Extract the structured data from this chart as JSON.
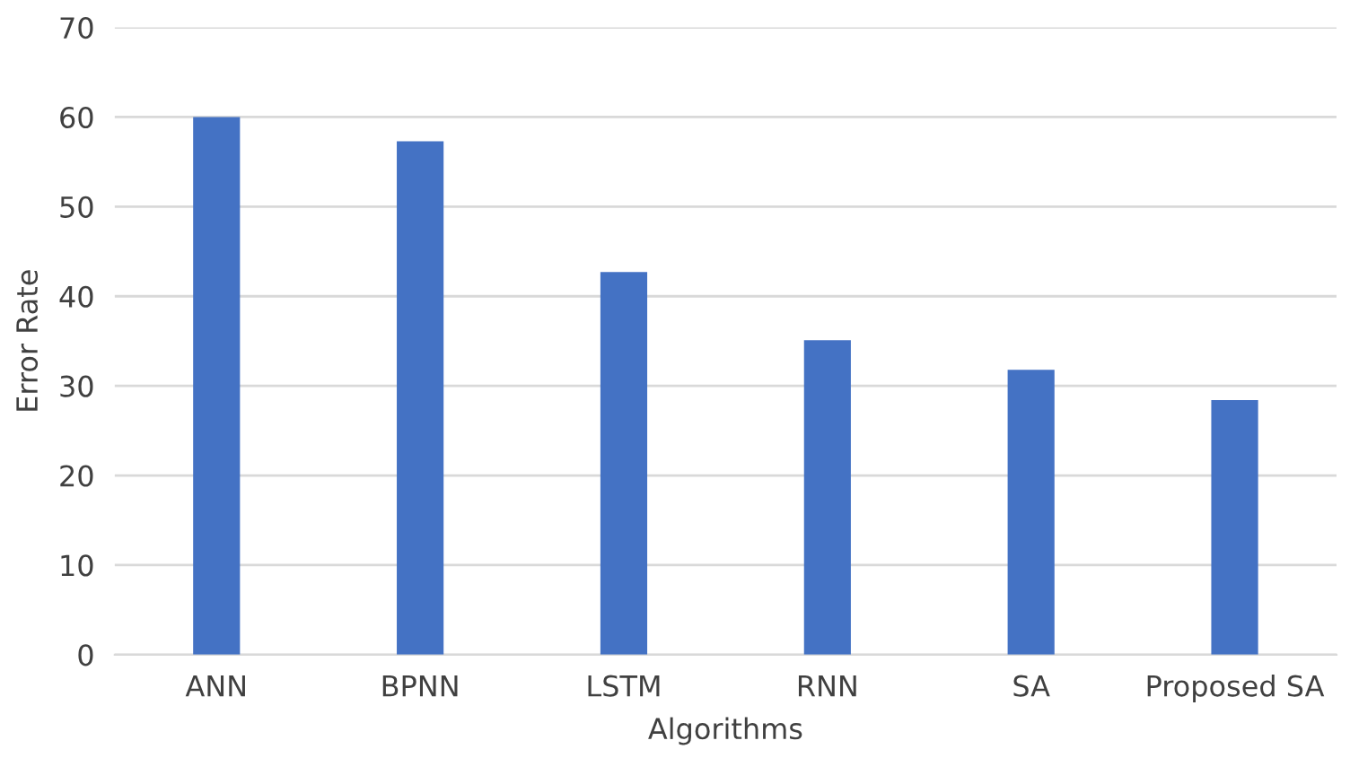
{
  "chart_data": {
    "type": "bar",
    "xlabel": "Algorithms",
    "ylabel": "Error Rate",
    "categories": [
      "ANN",
      "BPNN",
      "LSTM",
      "RNN",
      "SA",
      "Proposed SA"
    ],
    "values": [
      60.0,
      57.3,
      42.7,
      35.1,
      31.8,
      28.4
    ],
    "color": "#4472c4",
    "ylim": [
      0,
      70
    ],
    "yticks": [
      0,
      10,
      20,
      30,
      40,
      50,
      60,
      70
    ],
    "grid": "y",
    "legend": false
  }
}
